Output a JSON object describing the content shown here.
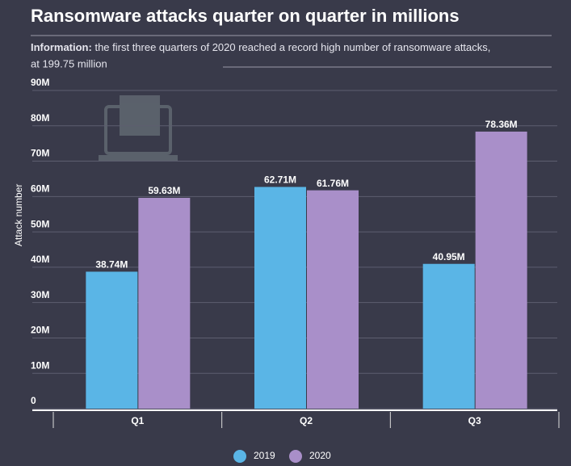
{
  "chart_data": {
    "type": "bar",
    "title": "Ransomware attacks quarter on quarter in millions",
    "subtitle": {
      "label": "Information:",
      "text": "the first three quarters of 2020 reached a record high number of ransomware attacks, at 199.75 million"
    },
    "y_label": "Attack number",
    "categories": [
      "Q1",
      "Q2",
      "Q3"
    ],
    "series": [
      {
        "name": "2019",
        "color": "#5ab5e6",
        "values": [
          38.74,
          62.71,
          40.95
        ],
        "value_labels": [
          "38.74M",
          "62.71M",
          "40.95M"
        ]
      },
      {
        "name": "2020",
        "color": "#a98fc9",
        "values": [
          59.63,
          61.76,
          78.36
        ],
        "value_labels": [
          "59.63M",
          "61.76M",
          "78.36M"
        ]
      }
    ],
    "ylim": [
      0,
      90
    ],
    "yticks": [
      0,
      {
        "value": 10,
        "label": "10M"
      },
      {
        "value": 20,
        "label": "20M"
      },
      {
        "value": 30,
        "label": "30M"
      },
      {
        "value": 40,
        "label": "40M"
      },
      {
        "value": 50,
        "label": "50M"
      },
      {
        "value": 60,
        "label": "60M"
      },
      {
        "value": 70,
        "label": "70M"
      },
      {
        "value": 80,
        "label": "80M"
      },
      {
        "value": 90,
        "label": "90M"
      }
    ],
    "grid": true
  }
}
